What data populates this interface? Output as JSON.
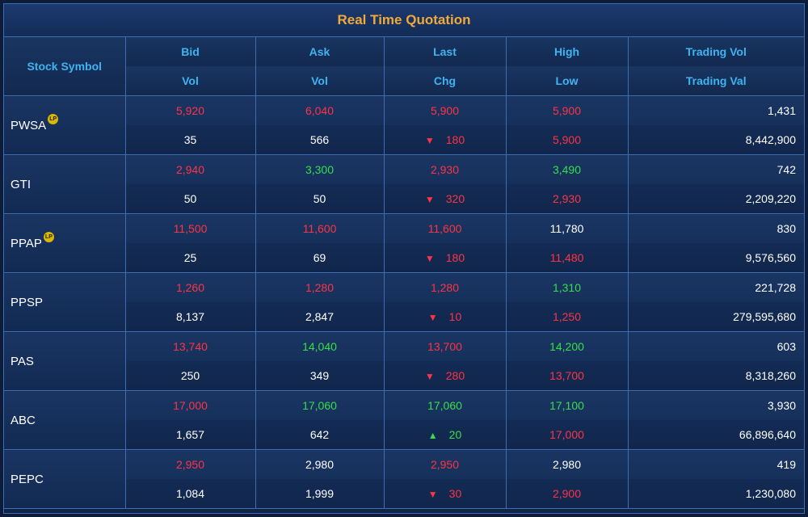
{
  "title": "Real Time Quotation",
  "headers": {
    "symbol": "Stock Symbol",
    "row1": [
      "Bid",
      "Ask",
      "Last",
      "High",
      "Trading Vol"
    ],
    "row2": [
      "Vol",
      "Vol",
      "Chg",
      "Low",
      "Trading Val"
    ]
  },
  "colors": {
    "up": "#33e04a",
    "down": "#ff3344",
    "neutral": "#ffffff",
    "header": "#3fb4f0",
    "title": "#f0a93b"
  },
  "lp_badge": "LP",
  "stocks": [
    {
      "symbol": "PWSA",
      "lp": true,
      "bid": {
        "text": "5,920",
        "color": "red"
      },
      "ask": {
        "text": "6,040",
        "color": "red"
      },
      "last": {
        "text": "5,900",
        "color": "red"
      },
      "high": {
        "text": "5,900",
        "color": "red"
      },
      "trading_vol": "1,431",
      "bid_vol": "35",
      "ask_vol": "566",
      "chg": {
        "text": "180",
        "dir": "down",
        "color": "red"
      },
      "low": {
        "text": "5,900",
        "color": "red"
      },
      "trading_val": "8,442,900"
    },
    {
      "symbol": "GTI",
      "lp": false,
      "bid": {
        "text": "2,940",
        "color": "red"
      },
      "ask": {
        "text": "3,300",
        "color": "green"
      },
      "last": {
        "text": "2,930",
        "color": "red"
      },
      "high": {
        "text": "3,490",
        "color": "green"
      },
      "trading_vol": "742",
      "bid_vol": "50",
      "ask_vol": "50",
      "chg": {
        "text": "320",
        "dir": "down",
        "color": "red"
      },
      "low": {
        "text": "2,930",
        "color": "red"
      },
      "trading_val": "2,209,220"
    },
    {
      "symbol": "PPAP",
      "lp": true,
      "bid": {
        "text": "11,500",
        "color": "red"
      },
      "ask": {
        "text": "11,600",
        "color": "red"
      },
      "last": {
        "text": "11,600",
        "color": "red"
      },
      "high": {
        "text": "11,780",
        "color": "white"
      },
      "trading_vol": "830",
      "bid_vol": "25",
      "ask_vol": "69",
      "chg": {
        "text": "180",
        "dir": "down",
        "color": "red"
      },
      "low": {
        "text": "11,480",
        "color": "red"
      },
      "trading_val": "9,576,560"
    },
    {
      "symbol": "PPSP",
      "lp": false,
      "bid": {
        "text": "1,260",
        "color": "red"
      },
      "ask": {
        "text": "1,280",
        "color": "red"
      },
      "last": {
        "text": "1,280",
        "color": "red"
      },
      "high": {
        "text": "1,310",
        "color": "green"
      },
      "trading_vol": "221,728",
      "bid_vol": "8,137",
      "ask_vol": "2,847",
      "chg": {
        "text": "10",
        "dir": "down",
        "color": "red"
      },
      "low": {
        "text": "1,250",
        "color": "red"
      },
      "trading_val": "279,595,680"
    },
    {
      "symbol": "PAS",
      "lp": false,
      "bid": {
        "text": "13,740",
        "color": "red"
      },
      "ask": {
        "text": "14,040",
        "color": "green"
      },
      "last": {
        "text": "13,700",
        "color": "red"
      },
      "high": {
        "text": "14,200",
        "color": "green"
      },
      "trading_vol": "603",
      "bid_vol": "250",
      "ask_vol": "349",
      "chg": {
        "text": "280",
        "dir": "down",
        "color": "red"
      },
      "low": {
        "text": "13,700",
        "color": "red"
      },
      "trading_val": "8,318,260"
    },
    {
      "symbol": "ABC",
      "lp": false,
      "bid": {
        "text": "17,000",
        "color": "red"
      },
      "ask": {
        "text": "17,060",
        "color": "green"
      },
      "last": {
        "text": "17,060",
        "color": "green"
      },
      "high": {
        "text": "17,100",
        "color": "green"
      },
      "trading_vol": "3,930",
      "bid_vol": "1,657",
      "ask_vol": "642",
      "chg": {
        "text": "20",
        "dir": "up",
        "color": "green"
      },
      "low": {
        "text": "17,000",
        "color": "red"
      },
      "trading_val": "66,896,640"
    },
    {
      "symbol": "PEPC",
      "lp": false,
      "bid": {
        "text": "2,950",
        "color": "red"
      },
      "ask": {
        "text": "2,980",
        "color": "white"
      },
      "last": {
        "text": "2,950",
        "color": "red"
      },
      "high": {
        "text": "2,980",
        "color": "white"
      },
      "trading_vol": "419",
      "bid_vol": "1,084",
      "ask_vol": "1,999",
      "chg": {
        "text": "30",
        "dir": "down",
        "color": "red"
      },
      "low": {
        "text": "2,900",
        "color": "red"
      },
      "trading_val": "1,230,080"
    }
  ]
}
